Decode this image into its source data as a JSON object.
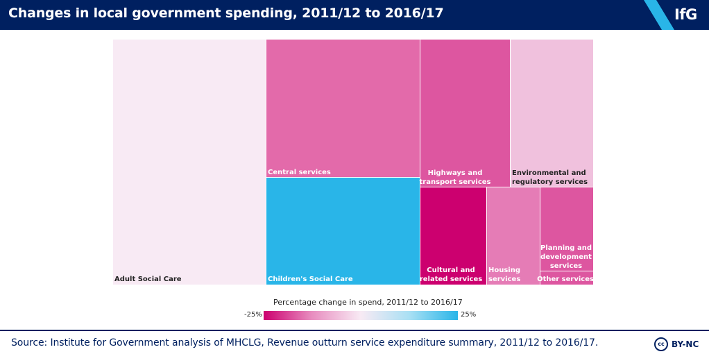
{
  "header": {
    "title": "Changes in local government spending, 2011/12 to 2016/17",
    "logo": "IfG",
    "background": "#002060"
  },
  "chart_data": {
    "type": "treemap",
    "title": "Changes in local government spending, 2011/12 to 2016/17",
    "color_scale": {
      "title": "Percentage change in spend, 2011/12 to 2016/17",
      "min_label": "-25%",
      "max_label": "25%",
      "min": -25,
      "max": 25
    },
    "items": [
      {
        "name": "Adult Social Care",
        "label_lines": [
          "Adult Social Care"
        ],
        "share": 0.305,
        "color": "#f8eaf4",
        "text_color": "dark"
      },
      {
        "name": "Central services",
        "label_lines": [
          "Central services"
        ],
        "share": 0.19,
        "color": "#e36aaa",
        "text_color": "light"
      },
      {
        "name": "Children's Social Care",
        "label_lines": [
          "Children's Social Care"
        ],
        "share": 0.13,
        "color": "#29b5e8",
        "text_color": "light"
      },
      {
        "name": "Highways and transport services",
        "label_lines": [
          "Highways and",
          "transport services"
        ],
        "share": 0.11,
        "color": "#dd56a0",
        "text_color": "light"
      },
      {
        "name": "Environmental and regulatory services",
        "label_lines": [
          "Environmental and",
          "regulatory services"
        ],
        "share": 0.08,
        "color": "#f0c1dd",
        "text_color": "dark"
      },
      {
        "name": "Cultural and related services",
        "label_lines": [
          "Cultural and",
          "related services"
        ],
        "share": 0.05,
        "color": "#cc006f",
        "text_color": "light"
      },
      {
        "name": "Housing services",
        "label_lines": [
          "Housing",
          "services"
        ],
        "share": 0.045,
        "color": "#e57cb6",
        "text_color": "light"
      },
      {
        "name": "Planning and development services",
        "label_lines": [
          "Planning and",
          "development",
          "services"
        ],
        "share": 0.04,
        "color": "#dd56a0",
        "text_color": "light"
      },
      {
        "name": "Other services",
        "label_lines": [
          "Other services"
        ],
        "share": 0.01,
        "color": "#dd56a0",
        "text_color": "light"
      }
    ]
  },
  "footer": {
    "source": "Source: Institute for Government analysis of MHCLG, Revenue outturn service expenditure summary, 2011/12 to 2016/17.",
    "cc_icon": "cc",
    "license": "BY-NC"
  }
}
